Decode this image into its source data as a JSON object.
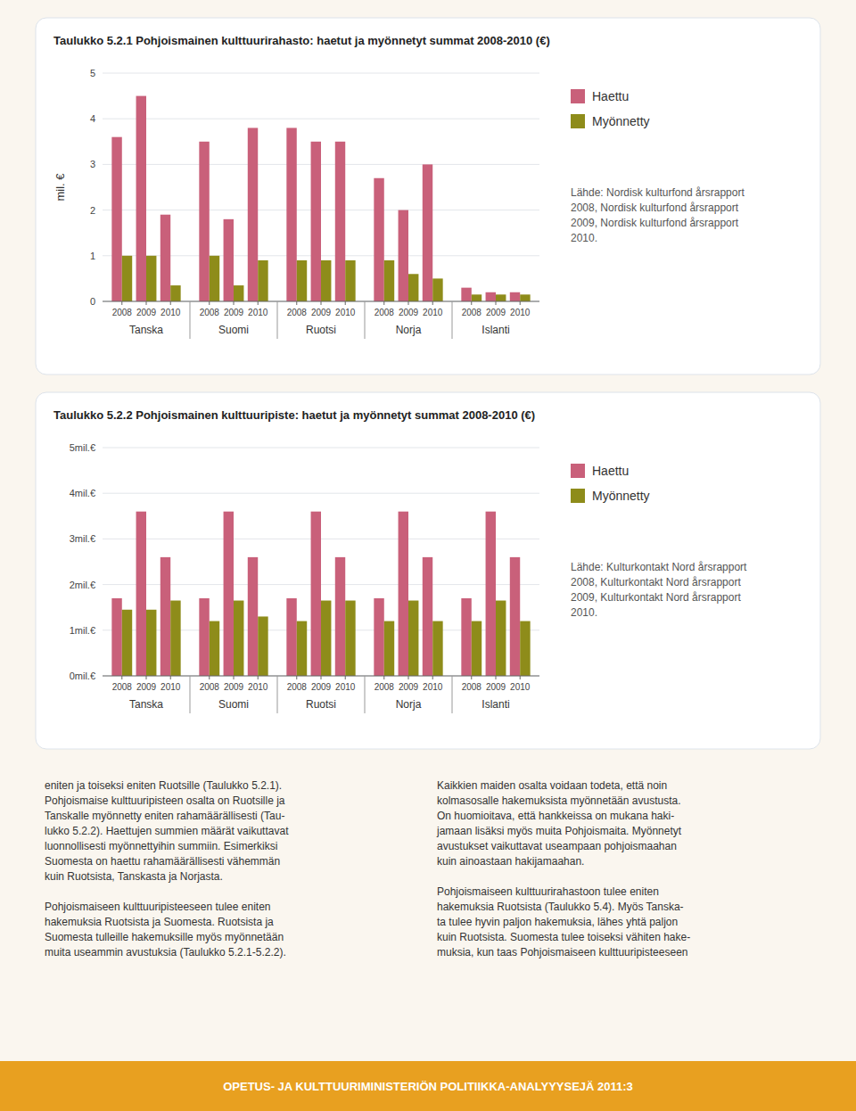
{
  "chart_data": [
    {
      "type": "bar",
      "title": "Taulukko 5.2.1 Pohjoismainen kulttuurirahasto: haetut ja myönnetyt summat 2008-2010 (€)",
      "categories": [
        "2008",
        "2009",
        "2010",
        "2008",
        "2009",
        "2010",
        "2008",
        "2009",
        "2010",
        "2008",
        "2009",
        "2010",
        "2008",
        "2009",
        "2010"
      ],
      "category_groups": [
        "Tanska",
        "Suomi",
        "Ruotsi",
        "Norja",
        "Islanti"
      ],
      "series": [
        {
          "name": "Haettu",
          "color": "#c9607a",
          "values": [
            3.6,
            4.5,
            1.9,
            3.5,
            1.8,
            3.8,
            3.8,
            3.5,
            3.5,
            2.7,
            2.0,
            3.0,
            0.3,
            0.2,
            0.2
          ]
        },
        {
          "name": "Myönnetty",
          "color": "#8e8c1a",
          "values": [
            1.0,
            1.0,
            0.35,
            1.0,
            0.35,
            0.9,
            0.9,
            0.9,
            0.9,
            0.9,
            0.6,
            0.5,
            0.15,
            0.15,
            0.15
          ]
        }
      ],
      "ylabel": "mil. €",
      "ylim": [
        0,
        5
      ],
      "yticks": [
        0,
        1,
        2,
        3,
        4,
        5
      ],
      "grid": true,
      "legend": "right",
      "annotations": [
        "Lähde: Nordisk kulturfond årsrapport\n2008, Nordisk kulturfond årsrapport\n2009, Nordisk kulturfond årsrapport\n2010."
      ]
    },
    {
      "type": "bar",
      "title": "Taulukko 5.2.2 Pohjoismainen kulttuuripiste: haetut ja myönnetyt summat 2008-2010 (€)",
      "categories": [
        "2008",
        "2009",
        "2010",
        "2008",
        "2009",
        "2010",
        "2008",
        "2009",
        "2010",
        "2008",
        "2009",
        "2010",
        "2008",
        "2009",
        "2010"
      ],
      "category_groups": [
        "Tanska",
        "Suomi",
        "Ruotsi",
        "Norja",
        "Islanti"
      ],
      "series": [
        {
          "name": "Haettu",
          "color": "#c9607a",
          "values": [
            1.7,
            3.6,
            2.6,
            1.7,
            3.6,
            2.6,
            1.7,
            3.6,
            2.6,
            1.7,
            3.6,
            2.6,
            1.7,
            3.6,
            2.6
          ]
        },
        {
          "name": "Myönnetty",
          "color": "#8e8c1a",
          "values": [
            1.45,
            1.45,
            1.65,
            1.2,
            1.65,
            1.3,
            1.2,
            1.65,
            1.65,
            1.2,
            1.65,
            1.2,
            1.2,
            1.65,
            1.2
          ]
        }
      ],
      "ylim": [
        0,
        5
      ],
      "yticks": [
        {
          "value": 0,
          "label": "0mil.€"
        },
        {
          "value": 1,
          "label": "1mil.€"
        },
        {
          "value": 2,
          "label": "2mil.€"
        },
        {
          "value": 3,
          "label": "3mil.€"
        },
        {
          "value": 4,
          "label": "4mil.€"
        },
        {
          "value": 5,
          "label": "5mil.€"
        }
      ],
      "grid": true,
      "legend": "right",
      "annotations": [
        "Lähde: Kulturkontakt Nord årsrapport\n2008, Kulturkontakt Nord årsrapport\n2009, Kulturkontakt Nord årsrapport\n2010."
      ]
    }
  ],
  "paragraphs": [
    "eniten ja toiseksi eniten Ruotsille (Taulukko 5.2.1).\nPohjoismaise kulttuuripisteen osalta on Ruotsille ja\nTanskalle myönnetty eniten rahamäärällisesti (Tau-\nlukko 5.2.2). Haettujen summien määrät vaikuttavat\nluonnollisesti myönnettyihin summiin. Esimerkiksi\nSuomesta on haettu rahamäärällisesti vähemmän\nkuin Ruotsista, Tanskasta ja Norjasta.\n\nPohjoismaiseen kulttuuripisteeseen tulee eniten\nhakemuksia Ruotsista ja Suomesta. Ruotsista ja\nSuomesta tulleille hakemuksille myös myönnetään\nmuita useammin avustuksia (Taulukko 5.2.1-5.2.2).",
    "Kaikkien maiden osalta voidaan todeta, että noin\nkolmasosalle hakemuksista myönnetään avustusta.\nOn huomioitava, että hankkeissa on mukana haki-\njamaan lisäksi myös muita Pohjoismaita. Myönnetyt\navustukset vaikuttavat useampaan pohjoismaahan\nkuin ainoastaan hakijamaahan.\n\nPohjoismaiseen kulttuurirahastoon tulee eniten\nhakemuksia Ruotsista (Taulukko 5.4). Myös Tanska-\nta tulee hyvin paljon hakemuksia, lähes yhtä paljon\nkuin Ruotsista. Suomesta tulee toiseksi vähiten hake-\nmuksia, kun taas Pohjoismaiseen kulttuuripisteeseen"
  ],
  "footer": "OPETUS- JA KULTTUURIMINISTERIÖN POLITIIKKA-ANALYYYSEJÄ 2011:3"
}
